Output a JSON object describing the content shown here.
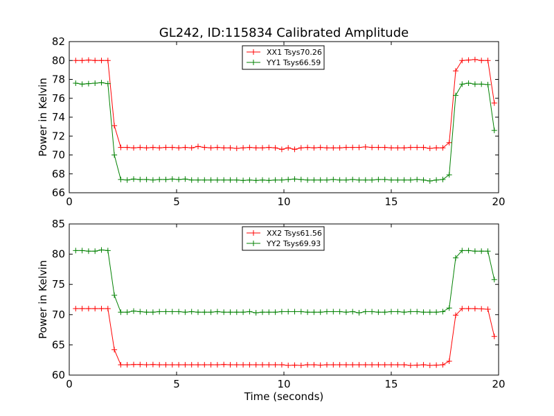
{
  "chart_data": {
    "title": "GL242, ID:115834 Calibrated Amplitude",
    "xlabel": "Time (seconds)",
    "subplots": [
      {
        "type": "line",
        "ylabel": "Power in Kelvin",
        "xlim": [
          0,
          20
        ],
        "ylim": [
          66,
          82
        ],
        "xticks": [
          0,
          5,
          10,
          15,
          20
        ],
        "yticks": [
          66,
          68,
          70,
          72,
          74,
          76,
          78,
          80,
          82
        ],
        "show_xlabel": false,
        "legend_position": "top-center",
        "series": [
          {
            "name": "XX1 Tsys70.26",
            "color": "#ff0000",
            "x": [
              0.3,
              0.6,
              0.9,
              1.2,
              1.5,
              1.8,
              2.1,
              2.4,
              2.7,
              3.0,
              3.3,
              3.6,
              3.9,
              4.2,
              4.5,
              4.8,
              5.1,
              5.4,
              5.7,
              6.0,
              6.3,
              6.6,
              6.9,
              7.2,
              7.5,
              7.8,
              8.1,
              8.4,
              8.7,
              9.0,
              9.3,
              9.6,
              9.9,
              10.2,
              10.5,
              10.8,
              11.1,
              11.4,
              11.7,
              12.0,
              12.3,
              12.6,
              12.9,
              13.2,
              13.5,
              13.8,
              14.1,
              14.4,
              14.7,
              15.0,
              15.3,
              15.6,
              15.9,
              16.2,
              16.5,
              16.8,
              17.1,
              17.4,
              17.7,
              18.0,
              18.3,
              18.6,
              18.9,
              19.2,
              19.5,
              19.8
            ],
            "y": [
              80.0,
              80.0,
              80.05,
              80.0,
              80.0,
              80.0,
              73.1,
              70.8,
              70.8,
              70.75,
              70.8,
              70.75,
              70.8,
              70.75,
              70.8,
              70.8,
              70.75,
              70.8,
              70.75,
              70.9,
              70.8,
              70.75,
              70.8,
              70.75,
              70.75,
              70.7,
              70.75,
              70.8,
              70.75,
              70.75,
              70.8,
              70.75,
              70.6,
              70.75,
              70.6,
              70.75,
              70.8,
              70.75,
              70.8,
              70.75,
              70.75,
              70.75,
              70.8,
              70.8,
              70.8,
              70.85,
              70.8,
              70.8,
              70.8,
              70.75,
              70.75,
              70.75,
              70.8,
              70.8,
              70.8,
              70.7,
              70.75,
              70.75,
              71.3,
              78.9,
              80.0,
              80.05,
              80.1,
              80.0,
              80.0,
              75.5
            ]
          },
          {
            "name": "YY1 Tsys66.59",
            "color": "#008000",
            "x": [
              0.3,
              0.6,
              0.9,
              1.2,
              1.5,
              1.8,
              2.1,
              2.4,
              2.7,
              3.0,
              3.3,
              3.6,
              3.9,
              4.2,
              4.5,
              4.8,
              5.1,
              5.4,
              5.7,
              6.0,
              6.3,
              6.6,
              6.9,
              7.2,
              7.5,
              7.8,
              8.1,
              8.4,
              8.7,
              9.0,
              9.3,
              9.6,
              9.9,
              10.2,
              10.5,
              10.8,
              11.1,
              11.4,
              11.7,
              12.0,
              12.3,
              12.6,
              12.9,
              13.2,
              13.5,
              13.8,
              14.1,
              14.4,
              14.7,
              15.0,
              15.3,
              15.6,
              15.9,
              16.2,
              16.5,
              16.8,
              17.1,
              17.4,
              17.7,
              18.0,
              18.3,
              18.6,
              18.9,
              19.2,
              19.5,
              19.8
            ],
            "y": [
              77.6,
              77.5,
              77.55,
              77.6,
              77.65,
              77.55,
              70.0,
              67.4,
              67.35,
              67.45,
              67.4,
              67.4,
              67.35,
              67.4,
              67.4,
              67.45,
              67.4,
              67.45,
              67.35,
              67.35,
              67.35,
              67.35,
              67.35,
              67.35,
              67.35,
              67.35,
              67.3,
              67.35,
              67.3,
              67.35,
              67.3,
              67.35,
              67.35,
              67.4,
              67.45,
              67.4,
              67.35,
              67.35,
              67.35,
              67.35,
              67.4,
              67.35,
              67.35,
              67.4,
              67.35,
              67.35,
              67.35,
              67.4,
              67.4,
              67.35,
              67.35,
              67.35,
              67.35,
              67.4,
              67.35,
              67.25,
              67.35,
              67.4,
              67.9,
              76.3,
              77.5,
              77.6,
              77.5,
              77.5,
              77.45,
              72.6
            ]
          }
        ]
      },
      {
        "type": "line",
        "ylabel": "Power in Kelvin",
        "xlim": [
          0,
          20
        ],
        "ylim": [
          60,
          85
        ],
        "xticks": [
          0,
          5,
          10,
          15,
          20
        ],
        "yticks": [
          60,
          65,
          70,
          75,
          80,
          85
        ],
        "show_xlabel": true,
        "legend_position": "top-center",
        "series": [
          {
            "name": "XX2 Tsys61.56",
            "color": "#ff0000",
            "x": [
              0.3,
              0.6,
              0.9,
              1.2,
              1.5,
              1.8,
              2.1,
              2.4,
              2.7,
              3.0,
              3.3,
              3.6,
              3.9,
              4.2,
              4.5,
              4.8,
              5.1,
              5.4,
              5.7,
              6.0,
              6.3,
              6.6,
              6.9,
              7.2,
              7.5,
              7.8,
              8.1,
              8.4,
              8.7,
              9.0,
              9.3,
              9.6,
              9.9,
              10.2,
              10.5,
              10.8,
              11.1,
              11.4,
              11.7,
              12.0,
              12.3,
              12.6,
              12.9,
              13.2,
              13.5,
              13.8,
              14.1,
              14.4,
              14.7,
              15.0,
              15.3,
              15.6,
              15.9,
              16.2,
              16.5,
              16.8,
              17.1,
              17.4,
              17.7,
              18.0,
              18.3,
              18.6,
              18.9,
              19.2,
              19.5,
              19.8
            ],
            "y": [
              71.0,
              71.0,
              71.0,
              71.0,
              71.0,
              71.0,
              64.2,
              61.7,
              61.7,
              61.75,
              61.75,
              61.7,
              61.75,
              61.7,
              61.7,
              61.7,
              61.7,
              61.7,
              61.7,
              61.7,
              61.7,
              61.7,
              61.7,
              61.75,
              61.7,
              61.7,
              61.7,
              61.7,
              61.7,
              61.7,
              61.7,
              61.7,
              61.7,
              61.6,
              61.65,
              61.6,
              61.7,
              61.7,
              61.65,
              61.7,
              61.7,
              61.7,
              61.7,
              61.7,
              61.7,
              61.7,
              61.7,
              61.7,
              61.7,
              61.7,
              61.7,
              61.7,
              61.6,
              61.65,
              61.7,
              61.6,
              61.65,
              61.7,
              62.3,
              69.9,
              71.0,
              71.0,
              71.0,
              70.95,
              70.9,
              66.4
            ]
          },
          {
            "name": "YY2 Tsys69.93",
            "color": "#008000",
            "x": [
              0.3,
              0.6,
              0.9,
              1.2,
              1.5,
              1.8,
              2.1,
              2.4,
              2.7,
              3.0,
              3.3,
              3.6,
              3.9,
              4.2,
              4.5,
              4.8,
              5.1,
              5.4,
              5.7,
              6.0,
              6.3,
              6.6,
              6.9,
              7.2,
              7.5,
              7.8,
              8.1,
              8.4,
              8.7,
              9.0,
              9.3,
              9.6,
              9.9,
              10.2,
              10.5,
              10.8,
              11.1,
              11.4,
              11.7,
              12.0,
              12.3,
              12.6,
              12.9,
              13.2,
              13.5,
              13.8,
              14.1,
              14.4,
              14.7,
              15.0,
              15.3,
              15.6,
              15.9,
              16.2,
              16.5,
              16.8,
              17.1,
              17.4,
              17.7,
              18.0,
              18.3,
              18.6,
              18.9,
              19.2,
              19.5,
              19.8
            ],
            "y": [
              80.6,
              80.6,
              80.5,
              80.5,
              80.7,
              80.6,
              73.2,
              70.4,
              70.4,
              70.6,
              70.5,
              70.4,
              70.4,
              70.5,
              70.5,
              70.5,
              70.5,
              70.4,
              70.5,
              70.4,
              70.4,
              70.4,
              70.5,
              70.4,
              70.4,
              70.4,
              70.4,
              70.5,
              70.3,
              70.4,
              70.4,
              70.4,
              70.5,
              70.5,
              70.5,
              70.5,
              70.4,
              70.4,
              70.4,
              70.5,
              70.5,
              70.5,
              70.4,
              70.5,
              70.3,
              70.5,
              70.5,
              70.4,
              70.4,
              70.5,
              70.5,
              70.4,
              70.5,
              70.5,
              70.4,
              70.4,
              70.4,
              70.5,
              71.1,
              79.4,
              80.6,
              80.6,
              80.5,
              80.5,
              80.5,
              75.8
            ]
          }
        ]
      }
    ]
  }
}
